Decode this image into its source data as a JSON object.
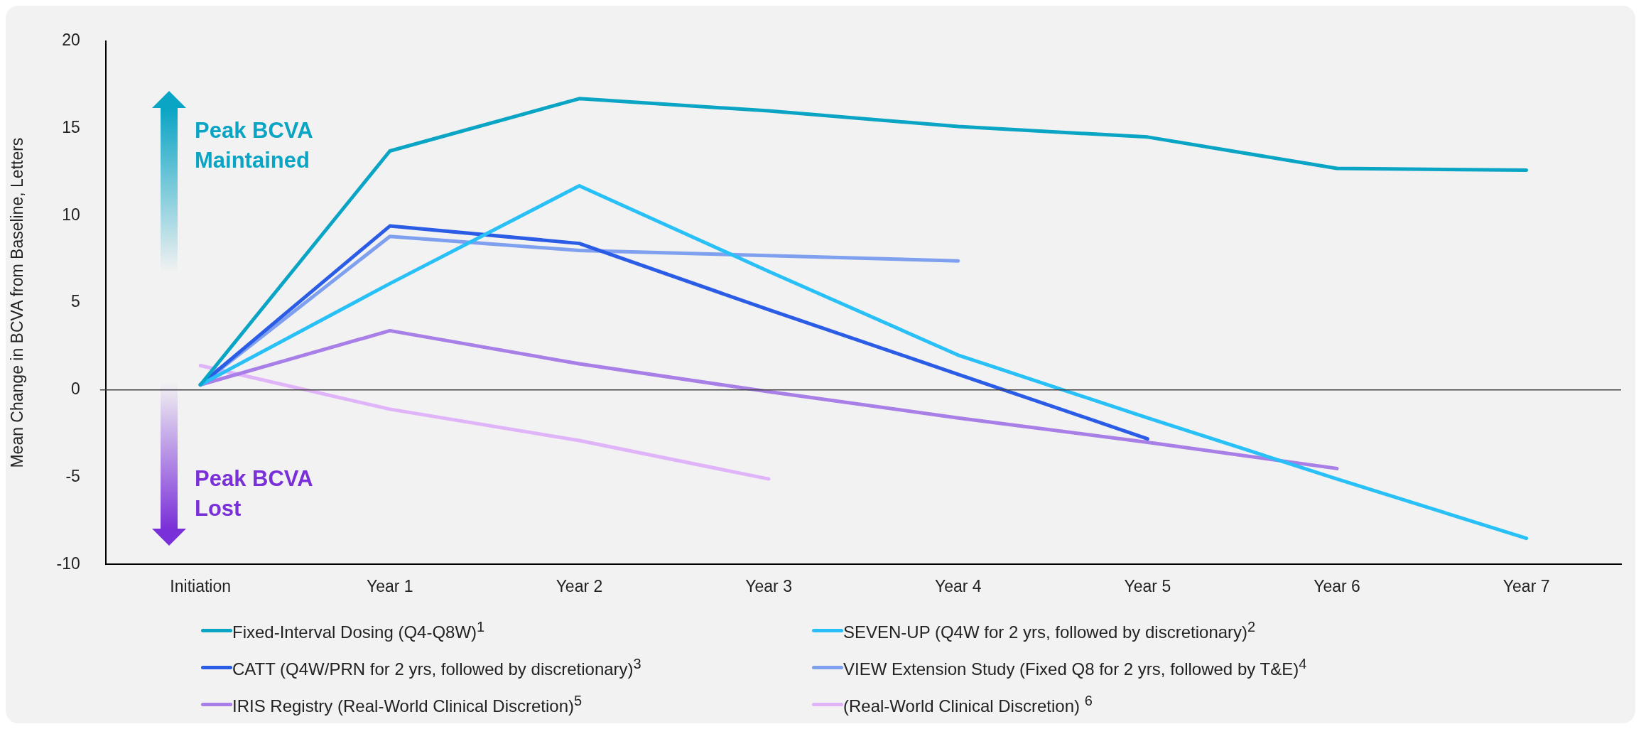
{
  "chart_data": {
    "type": "line",
    "ylabel": "Mean Change in BCVA from Baseline, Letters",
    "categories": [
      "Initiation",
      "Year 1",
      "Year 2",
      "Year 3",
      "Year 4",
      "Year 5",
      "Year 6",
      "Year 7"
    ],
    "series": [
      {
        "name": "Fixed-Interval Dosing (Q4-Q8W)$^{1}$",
        "color": "#0aa4c4",
        "values": [
          0.3,
          13.7,
          16.7,
          16.0,
          15.1,
          14.5,
          12.7,
          12.6
        ]
      },
      {
        "name": "SEVEN-UP (Q4W for 2 yrs, followed by discretionary)$^{2}$",
        "color": "#29c0f8",
        "values": [
          0.3,
          6.1,
          11.7,
          6.8,
          2.0,
          -1.6,
          -5.1,
          -8.5
        ]
      },
      {
        "name": "CATT (Q4W/PRN for 2 yrs, followed by discretionary)$^{3}$",
        "color": "#2b5ce6",
        "values": [
          0.3,
          9.4,
          8.4,
          4.6,
          0.9,
          -2.8,
          null,
          null
        ]
      },
      {
        "name": "VIEW Extension Study (Fixed Q8 for 2 yrs, followed by T&E)$^{4}$",
        "color": "#7fa0ee",
        "values": [
          0.3,
          8.8,
          8.0,
          7.7,
          7.4,
          null,
          null,
          null
        ]
      },
      {
        "name": "IRIS Registry (Real-World Clinical Discretion)$^{5}$",
        "color": "#a77fe6",
        "values": [
          0.3,
          3.4,
          1.5,
          -0.1,
          -1.6,
          -3.0,
          -4.5,
          null
        ]
      },
      {
        "name": "(Real-World Clinical Discretion) $^{6}$",
        "color": "#e0b4f8",
        "values": [
          1.4,
          -1.1,
          -2.9,
          -5.1,
          null,
          null,
          null,
          null
        ]
      }
    ],
    "ylim": [
      -10,
      20
    ],
    "yticks": [
      -10,
      -5,
      0,
      5,
      10,
      15,
      20
    ],
    "grid": false,
    "legend": "bottom",
    "marker": "none",
    "line_style": "solid",
    "ref_lines": [
      {
        "axis": "y",
        "value": 0,
        "color": "#404040"
      }
    ],
    "annotations": [
      "Peak BCVA Maintained",
      "Peak BCVA Lost"
    ]
  }
}
